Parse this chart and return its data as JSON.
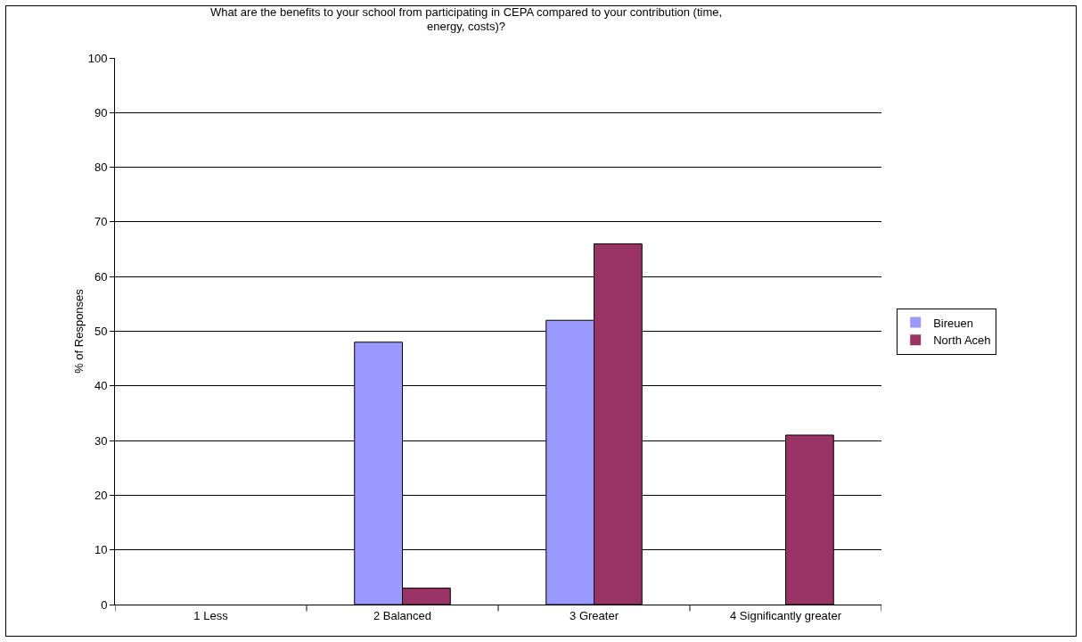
{
  "chart_data": {
    "type": "bar",
    "title": "What are the benefits to your school from participating in CEPA compared to your contribution (time, energy, costs)?",
    "ylabel": "% of Responses",
    "categories": [
      "1 Less",
      "2 Balanced",
      "3 Greater",
      "4 Significantly greater"
    ],
    "series": [
      {
        "name": "Bireuen",
        "color": "#9999ff",
        "values": [
          0,
          48,
          52,
          0
        ]
      },
      {
        "name": "North Aceh",
        "color": "#993366",
        "values": [
          0,
          3,
          66,
          31
        ]
      }
    ],
    "ylim": [
      0,
      100
    ],
    "yticks": [
      0,
      10,
      20,
      30,
      40,
      50,
      60,
      70,
      80,
      90,
      100
    ],
    "grid": "y",
    "legend": "right"
  }
}
